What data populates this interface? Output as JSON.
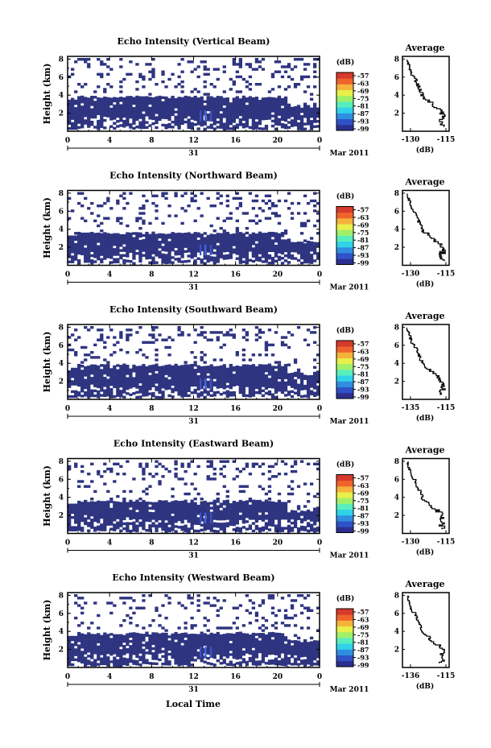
{
  "chart_data": [
    {
      "type": "heatmap",
      "title": "Echo Intensity (Vertical Beam)",
      "ylabel": "Height (km)",
      "yticks": [
        "2",
        "4",
        "6",
        "8"
      ],
      "xticks": [
        "0",
        "4",
        "8",
        "12",
        "16",
        "20",
        "0"
      ],
      "day_label": "31",
      "month_label": "Mar 2011",
      "colorbar_unit": "(dB)",
      "colorbar_ticks": [
        "-57",
        "-63",
        "-69",
        "-75",
        "-81",
        "-87",
        "-93",
        "-99"
      ],
      "echo_top_km": 3.8,
      "side_profile": {
        "title": "Average",
        "xticks": [
          "-130",
          "-115"
        ],
        "xlabel": "(dB)",
        "yticks": [
          "2",
          "4",
          "6",
          "8"
        ]
      }
    },
    {
      "type": "heatmap",
      "title": "Echo Intensity (Northward Beam)",
      "ylabel": "Height (km)",
      "yticks": [
        "2",
        "4",
        "6",
        "8"
      ],
      "xticks": [
        "0",
        "4",
        "8",
        "12",
        "16",
        "20",
        "0"
      ],
      "day_label": "31",
      "month_label": "Mar 2011",
      "colorbar_unit": "(dB)",
      "colorbar_ticks": [
        "-57",
        "-63",
        "-69",
        "-75",
        "-81",
        "-87",
        "-93",
        "-99"
      ],
      "echo_top_km": 3.6,
      "side_profile": {
        "title": "Average",
        "xticks": [
          "-130",
          "-115"
        ],
        "xlabel": "(dB)",
        "yticks": [
          "2",
          "4",
          "6",
          "8"
        ]
      }
    },
    {
      "type": "heatmap",
      "title": "Echo Intensity (Southward Beam)",
      "ylabel": "Height (km)",
      "yticks": [
        "2",
        "4",
        "6",
        "8"
      ],
      "xticks": [
        "0",
        "4",
        "8",
        "12",
        "16",
        "20",
        "0"
      ],
      "day_label": "31",
      "month_label": "Mar 2011",
      "colorbar_unit": "(dB)",
      "colorbar_ticks": [
        "-57",
        "-63",
        "-69",
        "-75",
        "-81",
        "-87",
        "-93",
        "-99"
      ],
      "echo_top_km": 3.8,
      "side_profile": {
        "title": "Average",
        "xticks": [
          "-135",
          "-115"
        ],
        "xlabel": "(dB)",
        "yticks": [
          "2",
          "4",
          "6",
          "8"
        ]
      }
    },
    {
      "type": "heatmap",
      "title": "Echo Intensity (Eastward Beam)",
      "ylabel": "Height (km)",
      "yticks": [
        "2",
        "4",
        "6",
        "8"
      ],
      "xticks": [
        "0",
        "4",
        "8",
        "12",
        "16",
        "20",
        "0"
      ],
      "day_label": "31",
      "month_label": "Mar 2011",
      "colorbar_unit": "(dB)",
      "colorbar_ticks": [
        "-57",
        "-63",
        "-69",
        "-75",
        "-81",
        "-87",
        "-93",
        "-99"
      ],
      "echo_top_km": 3.6,
      "side_profile": {
        "title": "Average",
        "xticks": [
          "-130",
          "-115"
        ],
        "xlabel": "(dB)",
        "yticks": [
          "2",
          "4",
          "6",
          "8"
        ]
      }
    },
    {
      "type": "heatmap",
      "title": "Echo Intensity (Westward Beam)",
      "ylabel": "Height (km)",
      "yticks": [
        "2",
        "4",
        "6",
        "8"
      ],
      "xticks": [
        "0",
        "4",
        "8",
        "12",
        "16",
        "20",
        "0"
      ],
      "day_label": "31",
      "month_label": "Mar 2011",
      "colorbar_unit": "(dB)",
      "colorbar_ticks": [
        "-57",
        "-63",
        "-69",
        "-75",
        "-81",
        "-87",
        "-93",
        "-99"
      ],
      "echo_top_km": 3.8,
      "side_profile": {
        "title": "Average",
        "xticks": [
          "-136",
          "-115"
        ],
        "xlabel": "(dB)",
        "yticks": [
          "2",
          "4",
          "6",
          "8"
        ]
      }
    }
  ],
  "xlabel": "Local Time",
  "colors": {
    "echo": "#2e3480",
    "bright": "#3b5bd9",
    "colorbar": [
      "#2d2f8f",
      "#2f52c8",
      "#2f8ee0",
      "#2fd3e8",
      "#58eebd",
      "#a0f06a",
      "#e8f04a",
      "#f6b33c",
      "#f0642c",
      "#d63a2a"
    ]
  }
}
